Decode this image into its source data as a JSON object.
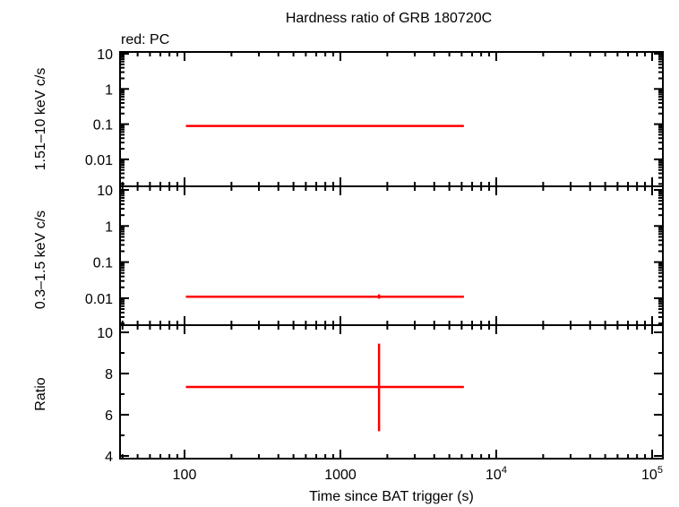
{
  "title": "Hardness ratio of GRB 180720C",
  "legend_note": "red: PC",
  "xlabel": "Time since BAT trigger (s)",
  "x_ticks": [
    {
      "label": "100",
      "exp": null
    },
    {
      "label": "1000",
      "exp": null
    },
    {
      "label": "10",
      "exp": "4"
    },
    {
      "label": "10",
      "exp": "5"
    }
  ],
  "panels": [
    {
      "ylabel": "1.51–10 keV c/s",
      "y_ticks": [
        "10",
        "1",
        "0.1",
        "0.01"
      ]
    },
    {
      "ylabel": "0.3–1.5 keV c/s",
      "y_ticks": [
        "10",
        "1",
        "0.1",
        "0.01"
      ]
    },
    {
      "ylabel": "Ratio",
      "y_ticks": [
        "10",
        "8",
        "6",
        "4"
      ]
    }
  ],
  "colors": {
    "series_pc": "#ff0000",
    "axes": "#000000"
  },
  "chart_data": [
    {
      "type": "scatter",
      "title": "Hardness ratio of GRB 180720C",
      "panel": "hard band",
      "xlabel": "Time since BAT trigger (s)",
      "ylabel": "1.51–10 keV c/s",
      "xscale": "log",
      "yscale": "log",
      "xlim": [
        40,
        110000
      ],
      "ylim": [
        0.004,
        12
      ],
      "series": [
        {
          "name": "PC",
          "color": "#ff0000",
          "points": [
            {
              "x": 1770,
              "x_lo": 102,
              "x_hi": 6200,
              "y": 0.089,
              "y_lo": 0.086,
              "y_hi": 0.093
            }
          ]
        }
      ]
    },
    {
      "type": "scatter",
      "panel": "soft band",
      "xlabel": "Time since BAT trigger (s)",
      "ylabel": "0.3–1.5 keV c/s",
      "xscale": "log",
      "yscale": "log",
      "xlim": [
        40,
        110000
      ],
      "ylim": [
        0.004,
        12
      ],
      "series": [
        {
          "name": "PC",
          "color": "#ff0000",
          "points": [
            {
              "x": 1770,
              "x_lo": 102,
              "x_hi": 6200,
              "y": 0.011,
              "y_lo": 0.0097,
              "y_hi": 0.0128
            }
          ]
        }
      ]
    },
    {
      "type": "scatter",
      "panel": "ratio",
      "xlabel": "Time since BAT trigger (s)",
      "ylabel": "Ratio",
      "xscale": "log",
      "yscale": "linear",
      "xlim": [
        40,
        110000
      ],
      "ylim": [
        3.8,
        10.1
      ],
      "series": [
        {
          "name": "PC",
          "color": "#ff0000",
          "points": [
            {
              "x": 1770,
              "x_lo": 102,
              "x_hi": 6200,
              "y": 7.35,
              "y_lo": 5.2,
              "y_hi": 9.45
            }
          ]
        }
      ]
    }
  ]
}
